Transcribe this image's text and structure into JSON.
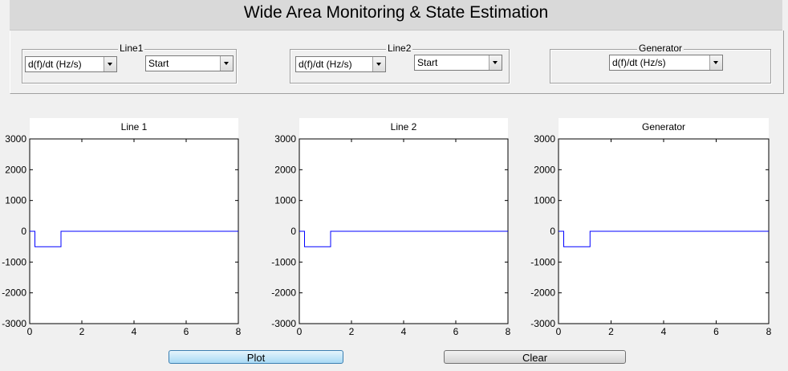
{
  "app": {
    "title": "Wide Area Monitoring & State Estimation"
  },
  "panels": {
    "line1": {
      "label": "Line1",
      "quantity": "d(f)/dt (Hz/s)",
      "mode": "Start"
    },
    "line2": {
      "label": "Line2",
      "quantity": "d(f)/dt (Hz/s)",
      "mode": "Start"
    },
    "generator": {
      "label": "Generator",
      "quantity": "d(f)/dt  (Hz/s)"
    }
  },
  "buttons": {
    "plot": "Plot",
    "clear": "Clear"
  },
  "colors": {
    "line": "#0000ff",
    "axes_bg": "#ffffff",
    "figure_bg": "#f0f0f0"
  },
  "chart_data": [
    {
      "type": "line",
      "title": "Line 1",
      "xlim": [
        0,
        8
      ],
      "ylim": [
        -3000,
        3000
      ],
      "xticks": [
        0,
        2,
        4,
        6,
        8
      ],
      "yticks": [
        3000,
        2000,
        1000,
        0,
        -1000,
        -2000,
        -3000
      ],
      "series": [
        {
          "x": [
            0,
            0.2,
            0.2,
            1.2,
            1.2,
            8
          ],
          "y": [
            0,
            0,
            -500,
            -500,
            0,
            0
          ]
        }
      ]
    },
    {
      "type": "line",
      "title": "Line 2",
      "xlim": [
        0,
        8
      ],
      "ylim": [
        -3000,
        3000
      ],
      "xticks": [
        0,
        2,
        4,
        6,
        8
      ],
      "yticks": [
        3000,
        2000,
        1000,
        0,
        -1000,
        -2000,
        -3000
      ],
      "series": [
        {
          "x": [
            0,
            0.2,
            0.2,
            1.2,
            1.2,
            8
          ],
          "y": [
            0,
            0,
            -500,
            -500,
            0,
            0
          ]
        }
      ]
    },
    {
      "type": "line",
      "title": "Generator",
      "xlim": [
        0,
        8
      ],
      "ylim": [
        -3000,
        3000
      ],
      "xticks": [
        0,
        2,
        4,
        6,
        8
      ],
      "yticks": [
        3000,
        2000,
        1000,
        0,
        -1000,
        -2000,
        -3000
      ],
      "series": [
        {
          "x": [
            0,
            0.2,
            0.2,
            1.2,
            1.2,
            8
          ],
          "y": [
            0,
            0,
            -500,
            -500,
            0,
            0
          ]
        }
      ]
    }
  ]
}
